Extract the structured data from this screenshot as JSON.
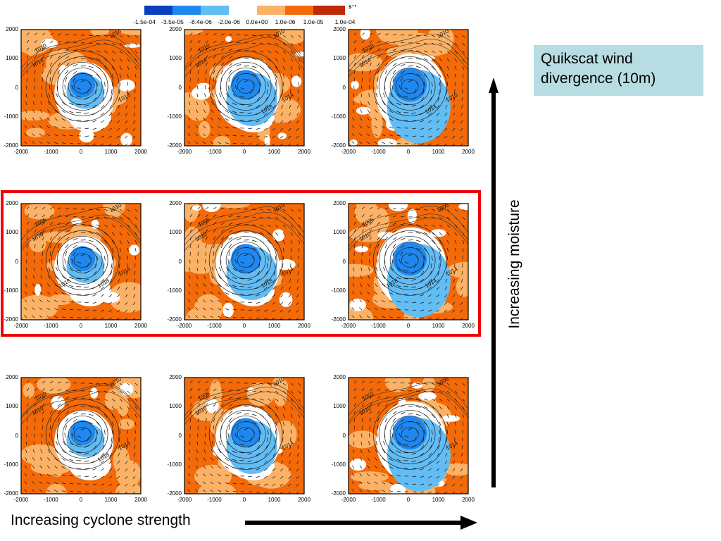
{
  "title_box": {
    "line1": "Quikscat wind",
    "line2": "divergence (10m)"
  },
  "axis_labels": {
    "vertical": "Increasing moisture",
    "horizontal": "Increasing cyclone strength"
  },
  "colorbar": {
    "unit": "s⁻¹",
    "colors": [
      "#0a3fbf",
      "#1e88f0",
      "#63bdf5",
      "#ffffff",
      "#fcb266",
      "#f46a08",
      "#c02a08"
    ],
    "ticks": [
      "-1.5e-04",
      "-3.5e-05",
      "-8.4e-06",
      "-2.0e-06",
      "0.0e+00",
      "1.0e-06",
      "1.0e-05",
      "1.0e-04"
    ]
  },
  "chart_data": {
    "type": "heatmap",
    "title": "Quikscat wind divergence (10m)",
    "layout": "3x3 panel grid",
    "row_axis": "Increasing moisture (bottom to top)",
    "column_axis": "Increasing cyclone strength (left to right)",
    "highlighted_row": 2,
    "xlim": [
      -2000,
      2000
    ],
    "ylim": [
      -2000,
      2000
    ],
    "xticks": [
      "-2000",
      "-1000",
      "0",
      "1000",
      "2000"
    ],
    "yticks": [
      "2000",
      "1000",
      "0",
      "-1000",
      "-2000"
    ],
    "color_levels": [
      "-1.5e-04",
      "-3.5e-05",
      "-8.4e-06",
      "-2.0e-06",
      "0.0e+00",
      "1.0e-06",
      "1.0e-05",
      "1.0e-04"
    ],
    "units": "s^-1",
    "panels": [
      {
        "row": 1,
        "col": 1,
        "contour_labels": [
          "1010",
          "1014",
          "1014",
          "1018"
        ]
      },
      {
        "row": 1,
        "col": 2,
        "contour_labels": [
          "1010",
          "1014",
          "1010",
          "1014",
          "1018"
        ]
      },
      {
        "row": 1,
        "col": 3,
        "contour_labels": [
          "1010",
          "1014",
          "1010",
          "1010",
          "1014"
        ]
      },
      {
        "row": 2,
        "col": 1,
        "contour_labels": [
          "1006",
          "1010",
          "1010",
          "1014",
          "1018",
          "1018"
        ]
      },
      {
        "row": 2,
        "col": 2,
        "contour_labels": [
          "1006",
          "1010",
          "1010",
          "1014",
          "1018"
        ]
      },
      {
        "row": 2,
        "col": 3,
        "contour_labels": [
          "1006",
          "1010",
          "1006",
          "1014",
          "1014",
          "1018"
        ]
      },
      {
        "row": 3,
        "col": 1,
        "contour_labels": [
          "1010",
          "1010",
          "1010",
          "1014",
          "1018"
        ]
      },
      {
        "row": 3,
        "col": 2,
        "contour_labels": [
          "1006",
          "1010",
          "1010",
          "1014"
        ]
      },
      {
        "row": 3,
        "col": 3,
        "contour_labels": [
          "1002",
          "1010",
          "1006",
          "1014"
        ]
      }
    ]
  }
}
